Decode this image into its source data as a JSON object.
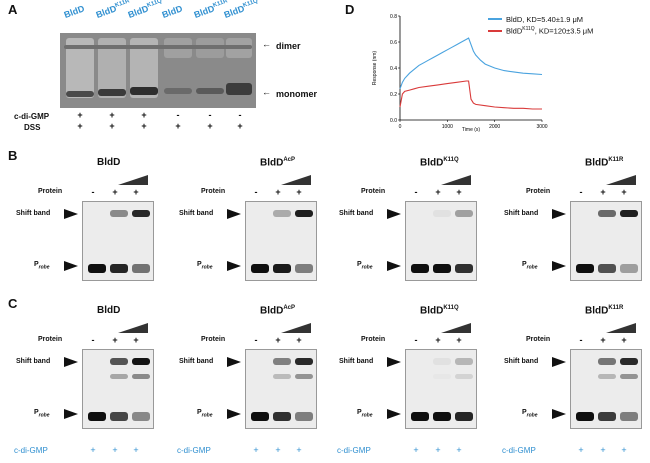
{
  "panelA": {
    "letter": "A",
    "lanes": [
      "BldD",
      "BldD",
      "BldD",
      "BldD",
      "BldD",
      "BldD"
    ],
    "lane_sups": [
      "",
      "K11R",
      "K11Q",
      "",
      "K11R",
      "K11Q"
    ],
    "dimer_label": "dimer",
    "monomer_label": "monomer",
    "cdigmp_label": "c-di-GMP",
    "dss_label": "DSS",
    "cdigmp_signs": [
      "+",
      "+",
      "+",
      "-",
      "-",
      "-"
    ],
    "dss_signs": [
      "+",
      "+",
      "+",
      "+",
      "+",
      "+"
    ]
  },
  "panelD": {
    "letter": "D",
    "chart_data": {
      "type": "line",
      "xlabel": "Time (s)",
      "ylabel": "Response (nm)",
      "xlim": [
        0,
        3000
      ],
      "ylim": [
        0,
        0.8
      ],
      "xticks": [
        "0",
        "1000",
        "2000",
        "3000"
      ],
      "yticks": [
        "0.0",
        "0.2",
        "0.4",
        "0.6",
        "0.8"
      ],
      "series": [
        {
          "name": "BldD, KD=5.40±1.9 μM",
          "color": "#4aa3df",
          "x": [
            0,
            50,
            100,
            200,
            300,
            400,
            500,
            600,
            700,
            800,
            900,
            1000,
            1100,
            1200,
            1300,
            1400,
            1450,
            1500,
            1550,
            1600,
            1700,
            1800,
            2000,
            2200,
            2400,
            2600,
            2800,
            3000
          ],
          "y": [
            0.24,
            0.29,
            0.32,
            0.36,
            0.39,
            0.42,
            0.44,
            0.46,
            0.48,
            0.5,
            0.52,
            0.54,
            0.56,
            0.58,
            0.6,
            0.62,
            0.63,
            0.58,
            0.53,
            0.5,
            0.46,
            0.43,
            0.4,
            0.38,
            0.37,
            0.36,
            0.355,
            0.35
          ]
        },
        {
          "name": "BldD^K11Q, KD=120±3.5 μM",
          "color": "#d93a3a",
          "x": [
            0,
            50,
            100,
            200,
            300,
            400,
            600,
            800,
            1000,
            1200,
            1400,
            1450,
            1500,
            1550,
            1600,
            1800,
            2000,
            2200,
            2400,
            2600,
            2800,
            3000
          ],
          "y": [
            0.1,
            0.2,
            0.22,
            0.23,
            0.24,
            0.25,
            0.26,
            0.27,
            0.28,
            0.29,
            0.3,
            0.3,
            0.16,
            0.13,
            0.12,
            0.11,
            0.1,
            0.095,
            0.09,
            0.09,
            0.085,
            0.085
          ]
        }
      ]
    },
    "legend": [
      {
        "text": "BldD, KD=5.40±1.9 μM"
      },
      {
        "pre": "BldD",
        "sup": "K11Q",
        "post": ", KD=120±3.5 μM"
      }
    ]
  },
  "panelB": {
    "letter": "B"
  },
  "panelC": {
    "letter": "C"
  },
  "emsa_titles": [
    {
      "base": "BldD",
      "sup": ""
    },
    {
      "base": "BldD",
      "sup": "AcP"
    },
    {
      "base": "BldD",
      "sup": "K11Q"
    },
    {
      "base": "BldD",
      "sup": "K11R"
    }
  ],
  "emsa": {
    "protein_label": "Protein",
    "protein_signs": [
      "-",
      "+",
      "+"
    ],
    "shift_label": "Shift band",
    "probe_base": "P",
    "probe_sub": "robe",
    "cdigmp_label": "c-di-GMP",
    "cdigmp_signs": [
      "+",
      "+",
      "+"
    ]
  }
}
